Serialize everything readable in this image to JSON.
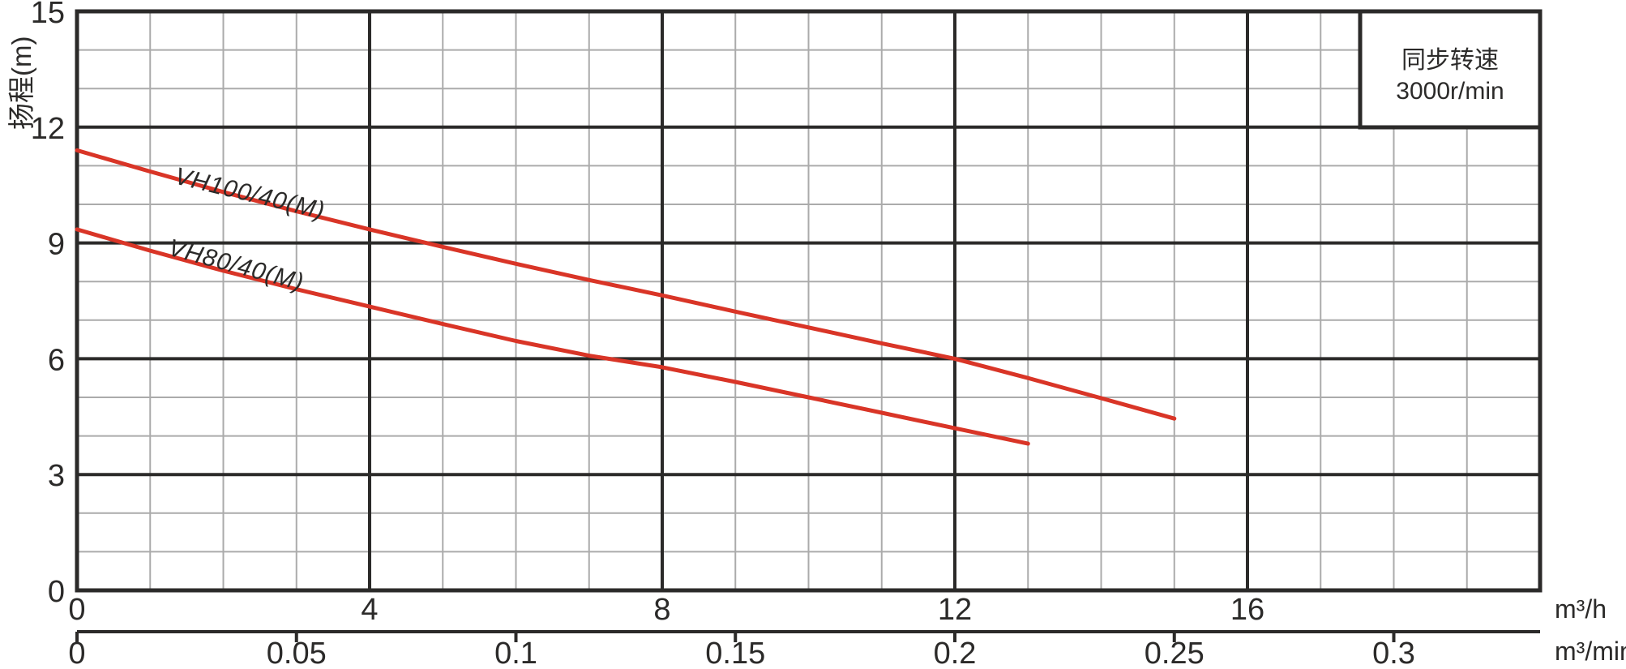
{
  "chart_data": {
    "type": "line",
    "title": "",
    "y_axis": {
      "label": "扬程(m)",
      "min": 0,
      "max": 15,
      "major_ticks": [
        0,
        3,
        6,
        9,
        12,
        15
      ],
      "minor_step": 1
    },
    "x_axis_primary": {
      "unit_label": "m³/h",
      "min": 0,
      "max": 20,
      "major_ticks": [
        0,
        4,
        8,
        12,
        16
      ],
      "minor_step": 1
    },
    "x_axis_secondary": {
      "unit_label": "m³/min",
      "ticks": [
        0,
        0.05,
        0.1,
        0.15,
        0.2,
        0.25,
        0.3
      ],
      "tick_labels": [
        "0",
        "0.05",
        "0.1",
        "0.15",
        "0.2",
        "0.25",
        "0.3"
      ]
    },
    "series": [
      {
        "name": "VH100/40(M)",
        "color": "#d93527",
        "points": [
          [
            0,
            11.4
          ],
          [
            1,
            10.85
          ],
          [
            2,
            10.32
          ],
          [
            3,
            9.82
          ],
          [
            4,
            9.35
          ],
          [
            5,
            8.9
          ],
          [
            6,
            8.46
          ],
          [
            7,
            8.04
          ],
          [
            8,
            7.64
          ],
          [
            9,
            7.22
          ],
          [
            10,
            6.81
          ],
          [
            11,
            6.4
          ],
          [
            12,
            6.0
          ],
          [
            13,
            5.5
          ],
          [
            14,
            4.98
          ],
          [
            15,
            4.45
          ]
        ]
      },
      {
        "name": "VH80/40(M)",
        "color": "#d93527",
        "points": [
          [
            0,
            9.35
          ],
          [
            1,
            8.8
          ],
          [
            2,
            8.28
          ],
          [
            3,
            7.8
          ],
          [
            4,
            7.35
          ],
          [
            5,
            6.9
          ],
          [
            6,
            6.46
          ],
          [
            7,
            6.08
          ],
          [
            8,
            5.78
          ],
          [
            9,
            5.4
          ],
          [
            10,
            5.0
          ],
          [
            11,
            4.6
          ],
          [
            12,
            4.2
          ],
          [
            13,
            3.8
          ]
        ]
      }
    ],
    "legend": {
      "line1": "同步转速",
      "line2": "3000r/min",
      "text_color": "#1879b4",
      "position": "top-right"
    },
    "grid": {
      "enabled": true,
      "major_color": "#2b2a29",
      "minor_color": "#ababab",
      "background": "#ffffff"
    }
  }
}
